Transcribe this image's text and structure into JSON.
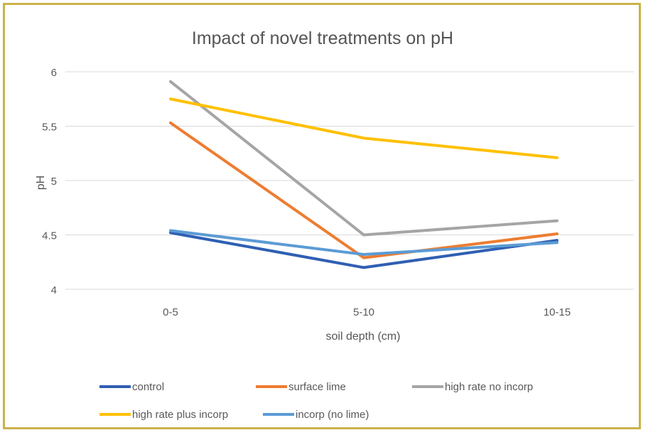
{
  "chart_data": {
    "type": "line",
    "title": "Impact of novel treatments on pH",
    "xlabel": "soil depth (cm)",
    "ylabel": "pH",
    "categories": [
      "0-5",
      "5-10",
      "10-15"
    ],
    "ylim": [
      4,
      6
    ],
    "yticks": [
      4,
      4.5,
      5,
      5.5,
      6
    ],
    "grid": "horizontal",
    "legend": "bottom",
    "series": [
      {
        "name": "control",
        "color": "#2f5fb3",
        "values": [
          4.52,
          4.2,
          4.45
        ]
      },
      {
        "name": "surface lime",
        "color": "#ed7d31",
        "values": [
          5.53,
          4.29,
          4.51
        ]
      },
      {
        "name": "high rate no incorp",
        "color": "#a5a5a5",
        "values": [
          5.91,
          4.5,
          4.63
        ]
      },
      {
        "name": "high rate plus incorp",
        "color": "#ffc000",
        "values": [
          5.75,
          5.39,
          5.21
        ]
      },
      {
        "name": "incorp (no lime)",
        "color": "#5b9bd5",
        "values": [
          4.54,
          4.32,
          4.43
        ]
      }
    ]
  }
}
